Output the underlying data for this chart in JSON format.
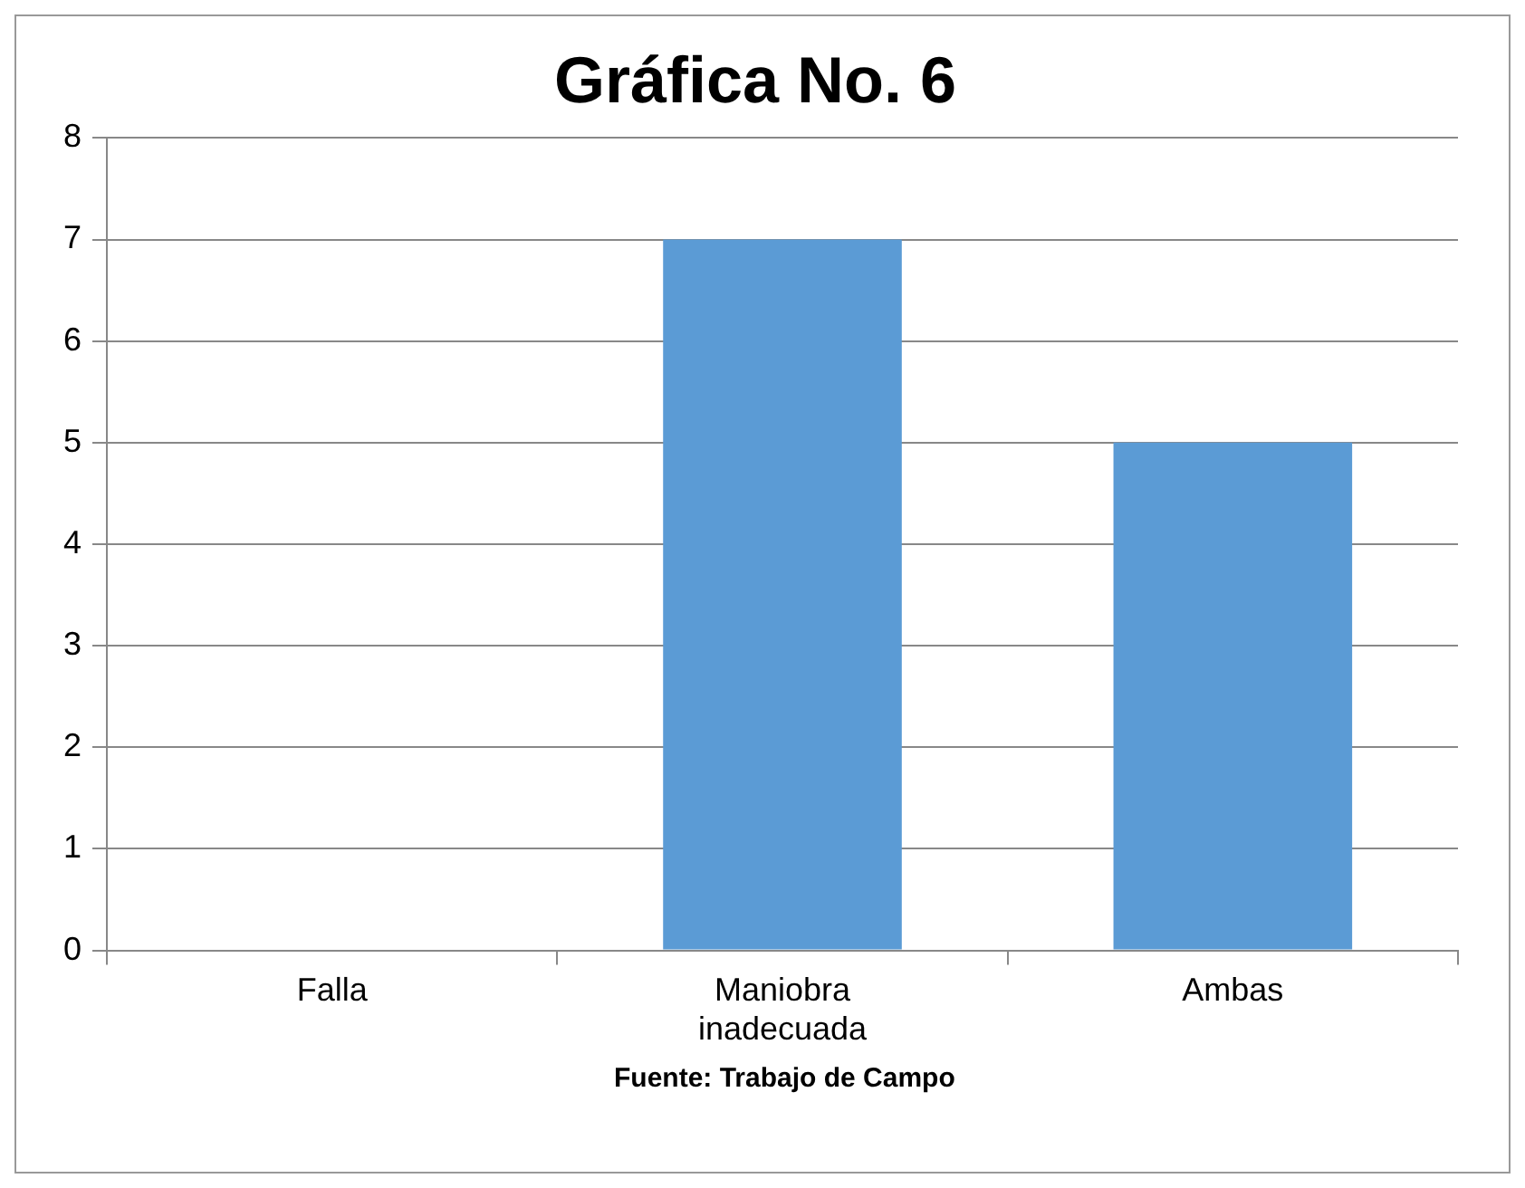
{
  "chart_data": {
    "type": "bar",
    "title": "Gráfica No. 6",
    "categories": [
      "Falla",
      "Maniobra inadecuada",
      "Ambas"
    ],
    "values": [
      0,
      7,
      5
    ],
    "color": "#5b9bd5",
    "ylim": [
      0,
      8
    ],
    "yticks": [
      0,
      1,
      2,
      3,
      4,
      5,
      6,
      7,
      8
    ],
    "grid": "y",
    "annotations": [
      "Fuente: Trabajo de Campo"
    ]
  }
}
